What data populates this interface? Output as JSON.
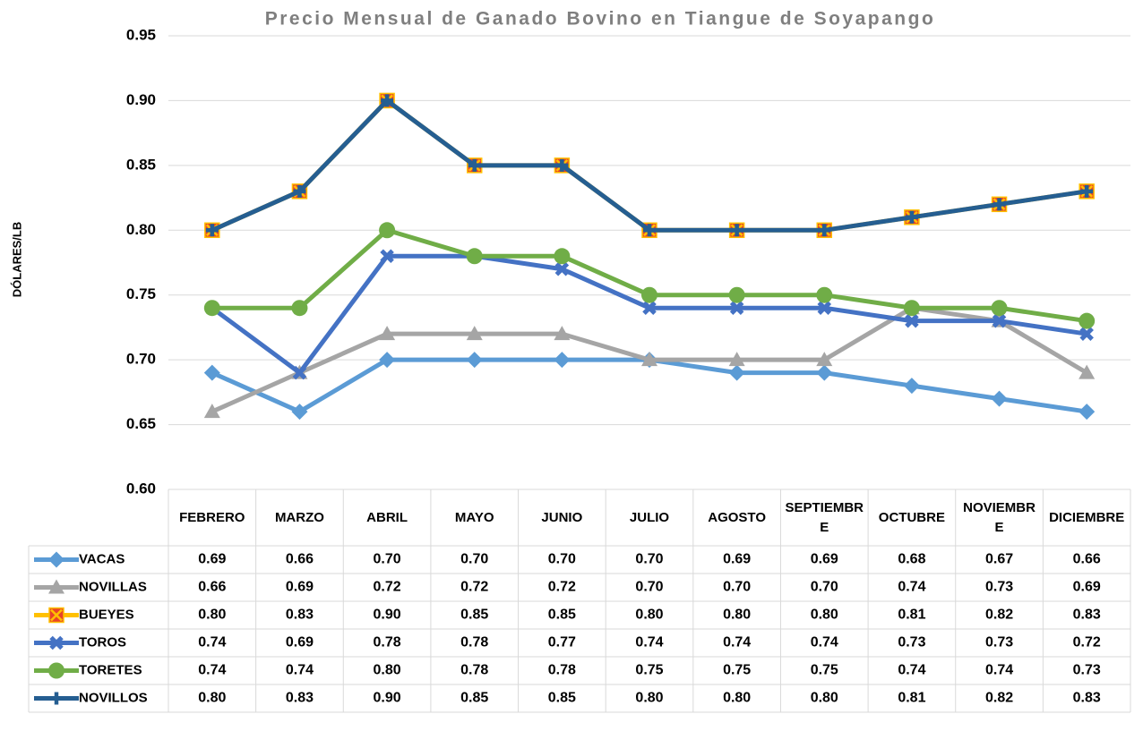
{
  "chart_data": {
    "type": "line",
    "title": "Precio Mensual de Ganado Bovino en Tiangue de Soyapango",
    "y_label": "DÓLARES/LB",
    "categories": [
      "FEBRERO",
      "MARZO",
      "ABRIL",
      "MAYO",
      "JUNIO",
      "JULIO",
      "AGOSTO",
      "SEPTIEMBRE",
      "OCTUBRE",
      "NOVIEMBRE",
      "DICIEMBRE"
    ],
    "series": [
      {
        "name": "VACAS",
        "color": "#5b9bd5",
        "marker": "diamond",
        "values": [
          0.69,
          0.66,
          0.7,
          0.7,
          0.7,
          0.7,
          0.69,
          0.69,
          0.68,
          0.67,
          0.66
        ],
        "value_labels": [
          "0.69",
          "0.66",
          "0.70",
          "0.70",
          "0.70",
          "0.70",
          "0.69",
          "0.69",
          "0.68",
          "0.67",
          "0.66"
        ]
      },
      {
        "name": "NOVILLAS",
        "color": "#a5a5a5",
        "marker": "triangle",
        "values": [
          0.66,
          0.69,
          0.72,
          0.72,
          0.72,
          0.7,
          0.7,
          0.7,
          0.74,
          0.73,
          0.69
        ],
        "value_labels": [
          "0.66",
          "0.69",
          "0.72",
          "0.72",
          "0.72",
          "0.70",
          "0.70",
          "0.70",
          "0.74",
          "0.73",
          "0.69"
        ]
      },
      {
        "name": "BUEYES",
        "color": "#ffc000",
        "marker": "square-x",
        "values": [
          0.8,
          0.83,
          0.9,
          0.85,
          0.85,
          0.8,
          0.8,
          0.8,
          0.81,
          0.82,
          0.83
        ],
        "value_labels": [
          "0.80",
          "0.83",
          "0.90",
          "0.85",
          "0.85",
          "0.80",
          "0.80",
          "0.80",
          "0.81",
          "0.82",
          "0.83"
        ]
      },
      {
        "name": "TOROS",
        "color": "#4472c4",
        "marker": "x",
        "values": [
          0.74,
          0.69,
          0.78,
          0.78,
          0.77,
          0.74,
          0.74,
          0.74,
          0.73,
          0.73,
          0.72
        ],
        "value_labels": [
          "0.74",
          "0.69",
          "0.78",
          "0.78",
          "0.77",
          "0.74",
          "0.74",
          "0.74",
          "0.73",
          "0.73",
          "0.72"
        ]
      },
      {
        "name": "TORETES",
        "color": "#70ad47",
        "marker": "circle",
        "values": [
          0.74,
          0.74,
          0.8,
          0.78,
          0.78,
          0.75,
          0.75,
          0.75,
          0.74,
          0.74,
          0.73
        ],
        "value_labels": [
          "0.74",
          "0.74",
          "0.80",
          "0.78",
          "0.78",
          "0.75",
          "0.75",
          "0.75",
          "0.74",
          "0.74",
          "0.73"
        ]
      },
      {
        "name": "NOVILLOS",
        "color": "#255e91",
        "marker": "plus",
        "values": [
          0.8,
          0.83,
          0.9,
          0.85,
          0.85,
          0.8,
          0.8,
          0.8,
          0.81,
          0.82,
          0.83
        ],
        "value_labels": [
          "0.80",
          "0.83",
          "0.90",
          "0.85",
          "0.85",
          "0.80",
          "0.80",
          "0.80",
          "0.81",
          "0.82",
          "0.83"
        ]
      }
    ],
    "ylim": [
      0.6,
      0.95
    ],
    "yticks": [
      {
        "value": 0.6,
        "label": "0.60"
      },
      {
        "value": 0.65,
        "label": "0.65"
      },
      {
        "value": 0.7,
        "label": "0.70"
      },
      {
        "value": 0.75,
        "label": "0.75"
      },
      {
        "value": 0.8,
        "label": "0.80"
      },
      {
        "value": 0.85,
        "label": "0.85"
      },
      {
        "value": 0.9,
        "label": "0.90"
      },
      {
        "value": 0.95,
        "label": "0.95"
      }
    ],
    "grid": true
  }
}
